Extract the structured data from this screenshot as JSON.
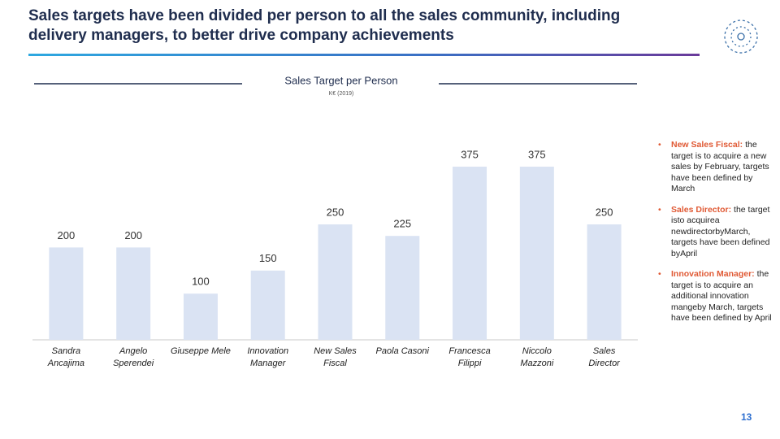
{
  "title": "Sales targets have been divided per person to all the sales community, including delivery managers, to better drive company achievements",
  "chart_data": {
    "type": "bar",
    "title": "Sales Target per Person",
    "subtitle": "K€ (2019)",
    "categories": [
      "Sandra Ancajima",
      "Angelo Sperendei",
      "Giuseppe Mele",
      "Innovation Manager",
      "New Sales Fiscal",
      "Paola Casoni",
      "Francesca Filippi",
      "Niccolo Mazzoni",
      "Sales Director"
    ],
    "values": [
      200,
      200,
      100,
      150,
      250,
      225,
      375,
      375,
      250
    ],
    "color": "#dae3f3"
  },
  "notes": [
    {
      "label": "New Sales Fiscal:",
      "text": "the target is to acquire a new sales by February, targets have been defined by March"
    },
    {
      "label": "Sales Director:",
      "text": "the target isto acquirea newdirectorbyMarch, targets have been defined byApril"
    },
    {
      "label": "Innovation Manager:",
      "text": "the target is to acquire an additional innovation mangeby March, targets have been defined by April"
    }
  ],
  "page_number": "13"
}
